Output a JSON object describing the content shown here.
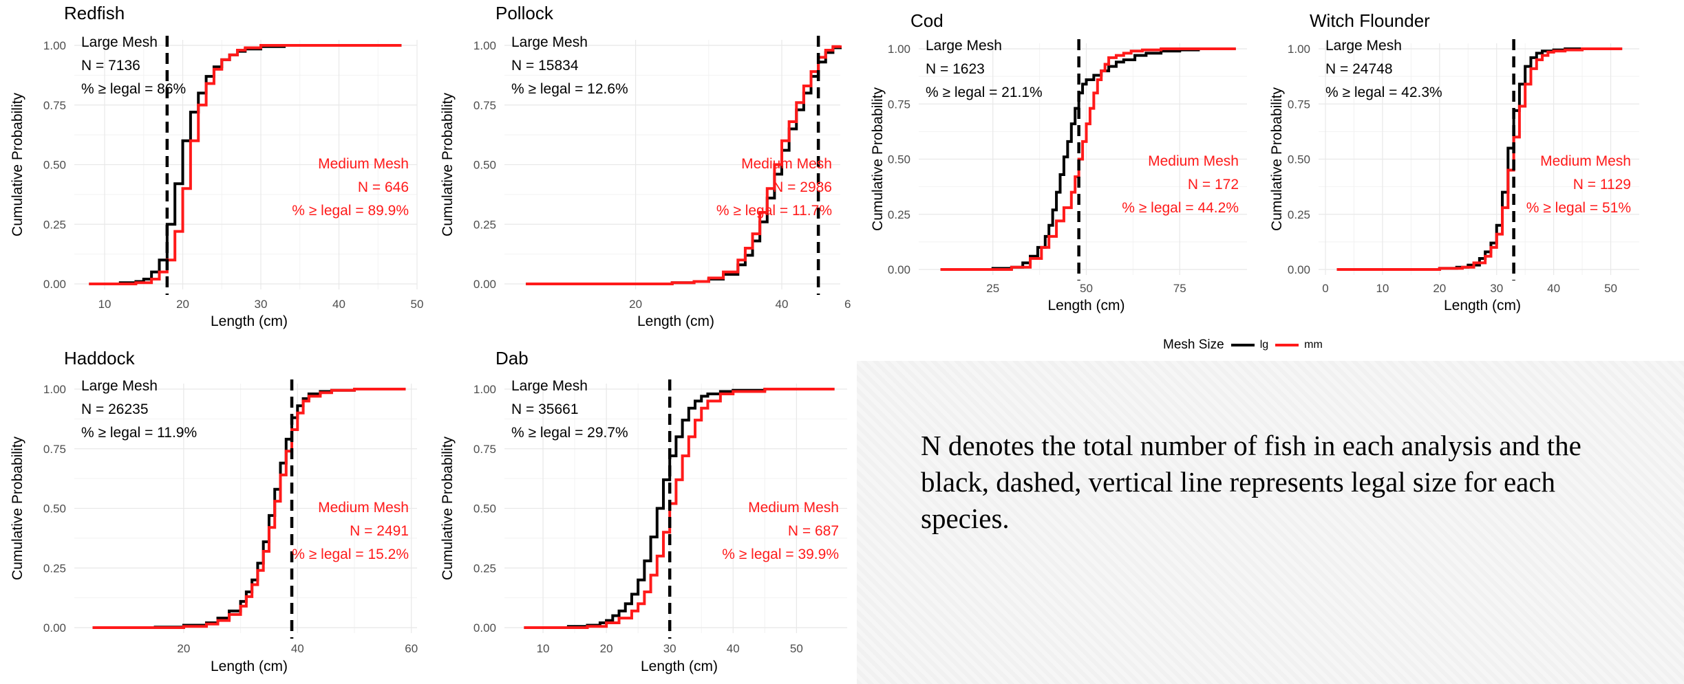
{
  "colors": {
    "large": "#000000",
    "medium": "#ff1a1a",
    "grid": "#e8e8e8",
    "text": "#4d4d4d"
  },
  "legend": {
    "title": "Mesh Size",
    "items": [
      {
        "label": "lg",
        "color": "#000000"
      },
      {
        "label": "mm",
        "color": "#ff1a1a"
      }
    ]
  },
  "caption": "N denotes the total number of fish in each analysis and the black, dashed, vertical line represents legal size for each species.",
  "chart_data": [
    {
      "type": "line",
      "step": true,
      "title": "Redfish",
      "xlabel": "Length (cm)",
      "ylabel": "Cumulative Probability",
      "xlim": [
        7,
        50
      ],
      "ylim": [
        0,
        1
      ],
      "xticks": [
        10,
        20,
        30,
        40,
        50
      ],
      "yticks": [
        0.0,
        0.25,
        0.5,
        0.75,
        1.0
      ],
      "ytick_labels": [
        "0.00",
        "0.25",
        "0.50",
        "0.75",
        "1.00"
      ],
      "legal_size": 18,
      "large_label": [
        "Large Mesh",
        "N = 7136",
        "% ≥ legal = 86%"
      ],
      "medium_label": [
        "Medium Mesh",
        "N = 646",
        "% ≥ legal = 89.9%"
      ],
      "series": [
        {
          "name": "lg",
          "x": [
            8,
            12,
            14,
            15,
            16,
            17,
            18,
            19,
            20,
            21,
            22,
            23,
            24,
            25,
            26,
            27,
            28,
            30,
            33,
            48
          ],
          "y": [
            0.0,
            0.005,
            0.01,
            0.02,
            0.05,
            0.1,
            0.25,
            0.42,
            0.6,
            0.72,
            0.8,
            0.87,
            0.91,
            0.94,
            0.96,
            0.975,
            0.985,
            0.995,
            1.0,
            1.0
          ]
        },
        {
          "name": "mm",
          "x": [
            8,
            14,
            16,
            17,
            18,
            19,
            20,
            21,
            22,
            23,
            24,
            25,
            26,
            27,
            28,
            30,
            48
          ],
          "y": [
            0.0,
            0.005,
            0.02,
            0.05,
            0.1,
            0.22,
            0.4,
            0.6,
            0.75,
            0.84,
            0.9,
            0.94,
            0.96,
            0.98,
            0.99,
            1.0,
            1.0
          ]
        }
      ]
    },
    {
      "type": "line",
      "step": true,
      "title": "Pollock",
      "xlabel": "Length (cm)",
      "ylabel": "Cumulative Probability",
      "xlim": [
        3,
        48
      ],
      "ylim": [
        0,
        1
      ],
      "xticks": [
        20,
        40
      ],
      "xtick_labels": [
        "20",
        "40"
      ],
      "clip_right_tick": "6",
      "yticks": [
        0.0,
        0.25,
        0.5,
        0.75,
        1.0
      ],
      "ytick_labels": [
        "0.00",
        "0.25",
        "0.50",
        "0.75",
        "1.00"
      ],
      "legal_size": 45,
      "large_label": [
        "Large Mesh",
        "N = 15834",
        "% ≥ legal = 12.6%"
      ],
      "medium_label": [
        "Medium Mesh",
        "N = 2986",
        "% ≥ legal = 11.7%"
      ],
      "series": [
        {
          "name": "lg",
          "x": [
            5,
            25,
            28,
            30,
            32,
            34,
            35,
            36,
            37,
            38,
            39,
            40,
            41,
            42,
            43,
            44,
            45,
            46,
            47,
            48
          ],
          "y": [
            0.0,
            0.005,
            0.01,
            0.02,
            0.04,
            0.08,
            0.12,
            0.18,
            0.26,
            0.36,
            0.46,
            0.56,
            0.65,
            0.73,
            0.8,
            0.87,
            0.93,
            0.97,
            0.99,
            1.0
          ]
        },
        {
          "name": "mm",
          "x": [
            5,
            25,
            28,
            30,
            32,
            34,
            35,
            36,
            37,
            38,
            39,
            40,
            41,
            42,
            43,
            44,
            45,
            46,
            47,
            48
          ],
          "y": [
            0.0,
            0.005,
            0.01,
            0.025,
            0.05,
            0.1,
            0.15,
            0.21,
            0.3,
            0.4,
            0.5,
            0.6,
            0.68,
            0.76,
            0.83,
            0.89,
            0.95,
            0.98,
            0.995,
            1.0
          ]
        }
      ]
    },
    {
      "type": "line",
      "step": true,
      "title": "Cod",
      "xlabel": "Length (cm)",
      "ylabel": "Cumulative Probability",
      "xlim": [
        7,
        93
      ],
      "ylim": [
        0,
        1
      ],
      "xticks": [
        25,
        50,
        75
      ],
      "yticks": [
        0.0,
        0.25,
        0.5,
        0.75,
        1.0
      ],
      "ytick_labels": [
        "0.00",
        "0.25",
        "0.50",
        "0.75",
        "1.00"
      ],
      "legal_size": 48,
      "large_label": [
        "Large Mesh",
        "N = 1623",
        "% ≥ legal = 21.1%"
      ],
      "medium_label": [
        "Medium Mesh",
        "N = 172",
        "% ≥ legal = 44.2%"
      ],
      "series": [
        {
          "name": "lg",
          "x": [
            11,
            25,
            30,
            33,
            35,
            37,
            39,
            40,
            41,
            42,
            43,
            44,
            45,
            46,
            47,
            48,
            49,
            50,
            52,
            54,
            56,
            58,
            60,
            63,
            66,
            70,
            75,
            80,
            90
          ],
          "y": [
            0.0,
            0.005,
            0.01,
            0.03,
            0.06,
            0.1,
            0.15,
            0.2,
            0.27,
            0.35,
            0.43,
            0.51,
            0.58,
            0.66,
            0.73,
            0.8,
            0.84,
            0.86,
            0.88,
            0.9,
            0.92,
            0.94,
            0.95,
            0.97,
            0.98,
            0.99,
            0.995,
            1.0,
            1.0
          ]
        },
        {
          "name": "mm",
          "x": [
            11,
            30,
            35,
            38,
            40,
            42,
            44,
            46,
            47,
            48,
            49,
            50,
            51,
            52,
            53,
            54,
            55,
            56,
            58,
            60,
            62,
            65,
            70,
            90
          ],
          "y": [
            0.0,
            0.01,
            0.05,
            0.1,
            0.15,
            0.22,
            0.28,
            0.35,
            0.42,
            0.5,
            0.58,
            0.66,
            0.73,
            0.8,
            0.86,
            0.9,
            0.93,
            0.96,
            0.97,
            0.98,
            0.99,
            0.995,
            1.0,
            1.0
          ]
        }
      ]
    },
    {
      "type": "line",
      "step": true,
      "title": "Witch Flounder",
      "xlabel": "Length (cm)",
      "ylabel": "Cumulative Probability",
      "xlim": [
        0,
        55
      ],
      "ylim": [
        0,
        1
      ],
      "xticks": [
        0,
        10,
        20,
        30,
        40,
        50
      ],
      "yticks": [
        0.0,
        0.25,
        0.5,
        0.75,
        1.0
      ],
      "ytick_labels": [
        "0.00",
        "0.25",
        "0.50",
        "0.75",
        "1.00"
      ],
      "legal_size": 33,
      "large_label": [
        "Large Mesh",
        "N = 24748",
        "% ≥ legal = 42.3%"
      ],
      "medium_label": [
        "Medium Mesh",
        "N = 1129",
        "% ≥ legal = 51%"
      ],
      "series": [
        {
          "name": "lg",
          "x": [
            2,
            20,
            23,
            25,
            27,
            28,
            29,
            30,
            31,
            32,
            33,
            34,
            35,
            36,
            37,
            38,
            40,
            42,
            44,
            52
          ],
          "y": [
            0.0,
            0.005,
            0.01,
            0.02,
            0.05,
            0.08,
            0.12,
            0.2,
            0.35,
            0.55,
            0.72,
            0.84,
            0.92,
            0.96,
            0.98,
            0.99,
            0.995,
            1.0,
            1.0,
            1.0
          ]
        },
        {
          "name": "mm",
          "x": [
            2,
            20,
            24,
            26,
            28,
            29,
            30,
            31,
            32,
            33,
            34,
            35,
            36,
            37,
            38,
            39,
            40,
            42,
            45,
            52
          ],
          "y": [
            0.0,
            0.005,
            0.01,
            0.03,
            0.06,
            0.1,
            0.16,
            0.28,
            0.45,
            0.6,
            0.74,
            0.84,
            0.91,
            0.95,
            0.97,
            0.985,
            0.99,
            0.995,
            1.0,
            1.0
          ]
        }
      ]
    },
    {
      "type": "line",
      "step": true,
      "title": "Haddock",
      "xlabel": "Length (cm)",
      "ylabel": "Cumulative Probability",
      "xlim": [
        2,
        61
      ],
      "ylim": [
        0,
        1
      ],
      "xticks": [
        20,
        40,
        60
      ],
      "yticks": [
        0.0,
        0.25,
        0.5,
        0.75,
        1.0
      ],
      "ytick_labels": [
        "0.00",
        "0.25",
        "0.50",
        "0.75",
        "1.00"
      ],
      "legal_size": 39,
      "large_label": [
        "Large Mesh",
        "N = 26235",
        "% ≥ legal = 11.9%"
      ],
      "medium_label": [
        "Medium Mesh",
        "N = 2491",
        "% ≥ legal = 15.2%"
      ],
      "series": [
        {
          "name": "lg",
          "x": [
            4,
            15,
            20,
            24,
            26,
            28,
            30,
            31,
            32,
            33,
            34,
            35,
            36,
            37,
            38,
            39,
            40,
            41,
            42,
            44,
            46,
            50,
            59
          ],
          "y": [
            0.0,
            0.002,
            0.01,
            0.02,
            0.04,
            0.07,
            0.11,
            0.15,
            0.2,
            0.27,
            0.36,
            0.47,
            0.58,
            0.69,
            0.79,
            0.88,
            0.93,
            0.96,
            0.98,
            0.99,
            0.995,
            1.0,
            1.0
          ]
        },
        {
          "name": "mm",
          "x": [
            4,
            20,
            24,
            26,
            28,
            30,
            31,
            32,
            33,
            34,
            35,
            36,
            37,
            38,
            39,
            40,
            41,
            42,
            44,
            46,
            50,
            59
          ],
          "y": [
            0.0,
            0.005,
            0.015,
            0.03,
            0.055,
            0.09,
            0.13,
            0.18,
            0.24,
            0.32,
            0.42,
            0.53,
            0.64,
            0.74,
            0.83,
            0.9,
            0.95,
            0.97,
            0.985,
            0.995,
            1.0,
            1.0
          ]
        }
      ]
    },
    {
      "type": "line",
      "step": true,
      "title": "Dab",
      "xlabel": "Length (cm)",
      "ylabel": "Cumulative Probability",
      "xlim": [
        5,
        58
      ],
      "ylim": [
        0,
        1
      ],
      "xticks": [
        10,
        20,
        30,
        40,
        50
      ],
      "yticks": [
        0.0,
        0.25,
        0.5,
        0.75,
        1.0
      ],
      "ytick_labels": [
        "0.00",
        "0.25",
        "0.50",
        "0.75",
        "1.00"
      ],
      "legal_size": 30,
      "large_label": [
        "Large Mesh",
        "N = 35661",
        "% ≥ legal = 29.7%"
      ],
      "medium_label": [
        "Medium Mesh",
        "N = 687",
        "% ≥ legal = 39.9%"
      ],
      "series": [
        {
          "name": "lg",
          "x": [
            7,
            14,
            17,
            19,
            20,
            21,
            22,
            23,
            24,
            25,
            26,
            27,
            28,
            29,
            30,
            31,
            32,
            33,
            34,
            35,
            36,
            38,
            40,
            45,
            56
          ],
          "y": [
            0.0,
            0.005,
            0.01,
            0.02,
            0.03,
            0.05,
            0.07,
            0.1,
            0.14,
            0.2,
            0.28,
            0.38,
            0.5,
            0.62,
            0.72,
            0.8,
            0.87,
            0.92,
            0.95,
            0.97,
            0.98,
            0.99,
            0.995,
            1.0,
            1.0
          ]
        },
        {
          "name": "mm",
          "x": [
            7,
            17,
            20,
            22,
            24,
            25,
            26,
            27,
            28,
            29,
            30,
            31,
            32,
            33,
            34,
            35,
            36,
            38,
            40,
            45,
            56
          ],
          "y": [
            0.0,
            0.005,
            0.02,
            0.04,
            0.07,
            0.1,
            0.15,
            0.22,
            0.3,
            0.4,
            0.52,
            0.62,
            0.72,
            0.8,
            0.87,
            0.92,
            0.95,
            0.98,
            0.99,
            1.0,
            1.0
          ]
        }
      ]
    }
  ]
}
